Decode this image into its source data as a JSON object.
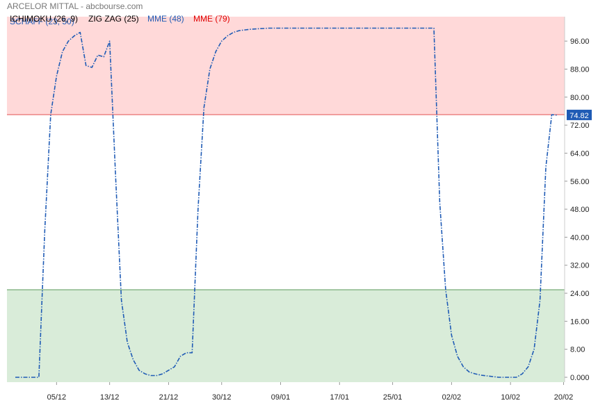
{
  "header": {
    "title": "ARCELOR MITTAL - abcbourse.com",
    "indicators": [
      {
        "label": "ICHIMOKU (26, 9)",
        "color": "#000000"
      },
      {
        "label": "ZIG ZAG (25)",
        "color": "#000000"
      },
      {
        "label": "MME (48)",
        "color": "#1f5bb5"
      },
      {
        "label": "MME (79)",
        "color": "#e00000"
      }
    ],
    "overlay_label": "SCHAFF (23, 50)"
  },
  "colors": {
    "line": "#1f5bb5",
    "overbought_zone": "#ffd9d9",
    "oversold_zone": "#d9ecd9",
    "overbought_line": "#e05050",
    "oversold_line": "#5a9a5a",
    "last_value_box": "#1f5bb5"
  },
  "chart_data": {
    "type": "line",
    "ylim": [
      0,
      100
    ],
    "y_ticks": [
      0,
      8,
      16,
      24,
      32,
      40,
      48,
      56,
      64,
      72,
      80,
      88,
      96
    ],
    "y_tick_labels": [
      "0.000",
      "8.00",
      "16.00",
      "24.00",
      "32.00",
      "40.00",
      "48.00",
      "56.00",
      "64.00",
      "72.00",
      "80.00",
      "88.00",
      "96.00"
    ],
    "x_ticks": [
      7,
      16,
      26,
      35,
      45,
      55,
      64,
      74,
      84,
      93
    ],
    "x_tick_labels": [
      "05/12",
      "13/12",
      "21/12",
      "30/12",
      "09/01",
      "17/01",
      "25/01",
      "02/02",
      "10/02",
      "20/02"
    ],
    "overbought_level": 75,
    "oversold_level": 25,
    "last_value": "74.82",
    "series": [
      {
        "values": [
          0,
          0,
          0,
          0,
          0,
          42,
          75,
          86,
          93,
          96,
          97.5,
          98.5,
          89,
          88.5,
          92,
          91.5,
          96,
          58,
          22,
          10,
          5,
          2,
          1,
          0.5,
          0.5,
          1,
          2,
          3,
          6,
          7,
          7,
          48,
          77,
          88,
          93,
          96,
          97.5,
          98.5,
          99,
          99.2,
          99.4,
          99.5,
          99.6,
          99.7,
          99.7,
          99.7,
          99.7,
          99.7,
          99.7,
          99.7,
          99.7,
          99.7,
          99.7,
          99.7,
          99.7,
          99.7,
          99.7,
          99.7,
          99.7,
          99.7,
          99.7,
          99.7,
          99.7,
          99.7,
          99.7,
          99.7,
          99.7,
          99.7,
          99.7,
          99.7,
          99.7,
          99.7,
          50,
          25,
          12,
          6,
          3,
          1.5,
          1,
          0.6,
          0.4,
          0.2,
          0,
          0,
          0,
          0,
          1,
          3,
          8,
          22,
          60,
          75,
          74.82
        ]
      }
    ]
  }
}
